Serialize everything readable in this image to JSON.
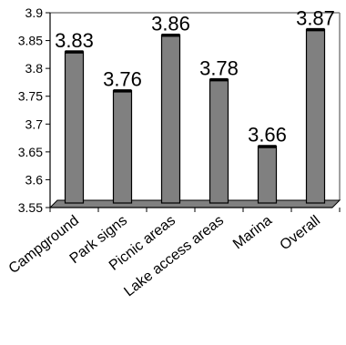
{
  "chart_data": {
    "type": "bar",
    "categories": [
      "Campground",
      "Park signs",
      "Picnic areas",
      "Lake access areas",
      "Marina",
      "Overall"
    ],
    "values": [
      3.83,
      3.76,
      3.86,
      3.78,
      3.66,
      3.87
    ],
    "value_labels": [
      "3.83",
      "3.76",
      "3.86",
      "3.78",
      "3.66",
      "3.87"
    ],
    "ylim": [
      3.55,
      3.9
    ],
    "yticks": [
      "3.55",
      "3.6",
      "3.65",
      "3.7",
      "3.75",
      "3.8",
      "3.85",
      "3.9"
    ],
    "title": "",
    "xlabel": "",
    "ylabel": "",
    "grid": false,
    "legend": "none",
    "colors": {
      "bar": "#808080",
      "bar_outline": "#000000",
      "floor": "#808080",
      "frame": "#808080",
      "axis": "#000000"
    }
  }
}
